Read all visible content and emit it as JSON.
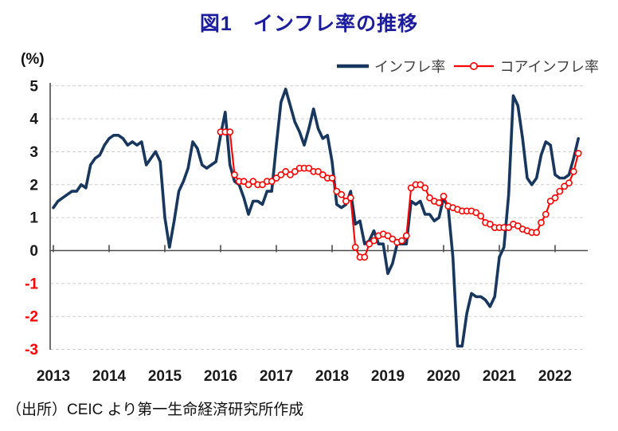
{
  "chart_data": {
    "type": "line",
    "title": "図1　インフレ率の推移",
    "unit_label": "(%)",
    "source": "（出所）CEIC より第一生命経済研究所作成",
    "x_years": [
      "2013",
      "2014",
      "2015",
      "2016",
      "2017",
      "2018",
      "2019",
      "2020",
      "2021",
      "2022"
    ],
    "x_start": "2013-01",
    "x_end": "2022-06",
    "ylim": [
      -3,
      5
    ],
    "yticks": [
      5,
      4,
      3,
      2,
      1,
      0,
      -1,
      -2,
      -3
    ],
    "grid": "dashed-horizontal",
    "legend_position": "top-right",
    "series": [
      {
        "name": "インフレ率",
        "color": "#17375E",
        "marker": "none",
        "start_month_index": 0,
        "values": [
          1.3,
          1.5,
          1.6,
          1.7,
          1.8,
          1.8,
          2.0,
          1.9,
          2.6,
          2.8,
          2.9,
          3.2,
          3.4,
          3.5,
          3.5,
          3.4,
          3.2,
          3.3,
          3.2,
          3.3,
          2.6,
          2.8,
          3.0,
          2.7,
          1.0,
          0.1,
          0.9,
          1.8,
          2.1,
          2.5,
          3.3,
          3.1,
          2.6,
          2.5,
          2.6,
          2.7,
          3.5,
          4.2,
          2.6,
          2.1,
          2.0,
          1.6,
          1.1,
          1.5,
          1.5,
          1.4,
          1.8,
          1.8,
          3.2,
          4.5,
          4.9,
          4.4,
          3.9,
          3.6,
          3.2,
          3.7,
          4.3,
          3.7,
          3.4,
          3.5,
          2.7,
          1.4,
          1.3,
          1.4,
          1.8,
          0.8,
          0.9,
          0.2,
          0.3,
          0.6,
          0.2,
          0.2,
          -0.7,
          -0.4,
          0.2,
          0.2,
          0.2,
          1.5,
          1.4,
          1.5,
          1.1,
          1.1,
          0.9,
          1.0,
          1.6,
          1.3,
          -0.2,
          -2.9,
          -2.9,
          -1.9,
          -1.3,
          -1.4,
          -1.4,
          -1.5,
          -1.7,
          -1.4,
          -0.2,
          0.1,
          1.7,
          4.7,
          4.4,
          3.4,
          2.2,
          2.0,
          2.2,
          2.9,
          3.3,
          3.2,
          2.3,
          2.2,
          2.2,
          2.3,
          2.8,
          3.4
        ]
      },
      {
        "name": "コアインフレ率",
        "color": "#FF0000",
        "marker": "open-circle",
        "start_month_index": 36,
        "values": [
          3.6,
          3.6,
          3.6,
          2.3,
          2.1,
          2.1,
          2.0,
          2.1,
          2.0,
          2.0,
          2.1,
          2.1,
          2.2,
          2.3,
          2.4,
          2.3,
          2.4,
          2.5,
          2.5,
          2.5,
          2.4,
          2.4,
          2.3,
          2.2,
          2.2,
          1.8,
          1.7,
          1.5,
          1.6,
          0.1,
          -0.2,
          -0.2,
          0.2,
          0.3,
          0.45,
          0.5,
          0.45,
          0.35,
          0.25,
          0.3,
          0.45,
          1.9,
          2.0,
          2.0,
          1.9,
          1.6,
          1.5,
          1.45,
          1.65,
          1.35,
          1.3,
          1.25,
          1.2,
          1.2,
          1.2,
          1.15,
          1.05,
          0.85,
          0.8,
          0.7,
          0.7,
          0.7,
          0.7,
          0.8,
          0.75,
          0.65,
          0.6,
          0.55,
          0.55,
          0.85,
          1.1,
          1.5,
          1.6,
          1.8,
          1.95,
          2.05,
          2.4,
          2.95
        ]
      }
    ]
  },
  "colors": {
    "title_blue": "#1C1C9E",
    "inflation_navy": "#17375E",
    "core_red": "#FF0000",
    "gridline": "#cfcfcf",
    "axis": "#4d4d4d",
    "tick_label": "#1a1a1a",
    "negative_tick_label": "#FF0000"
  }
}
